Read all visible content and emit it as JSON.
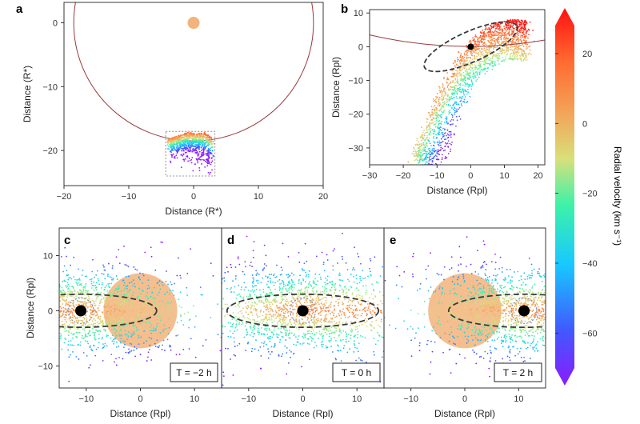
{
  "chart_data": [
    {
      "panel": "a",
      "type": "scatter",
      "xlabel": "Distance (R*)",
      "ylabel": "Distance (R*)",
      "xlim": [
        -20,
        20
      ],
      "ylim": [
        -25.5,
        3.2
      ],
      "xticks": [
        -20,
        -10,
        0,
        10,
        20
      ],
      "yticks": [
        -20,
        -10,
        0
      ],
      "star_circle": {
        "cx": 0,
        "cy": 0,
        "r": 18.5
      },
      "orange_marker": {
        "x": 0,
        "y": 0
      },
      "inset_box": {
        "x0": -4.3,
        "x1": 3.3,
        "y0": -24,
        "y1": -17
      }
    },
    {
      "panel": "b",
      "type": "scatter",
      "xlabel": "Distance (Rpl)",
      "ylabel": "Distance (Rpl)",
      "xlim": [
        -30,
        22
      ],
      "ylim": [
        -35,
        11
      ],
      "xticks": [
        -30,
        -20,
        -10,
        0,
        10,
        20
      ],
      "yticks": [
        -30,
        -20,
        -10,
        0,
        10
      ],
      "planet": {
        "x": 0,
        "y": 0
      },
      "roche_ellipse": {
        "cx": 0,
        "cy": 0,
        "rx": 15,
        "ry": 4.5,
        "angle_deg": 24
      }
    },
    {
      "panel": "c",
      "type": "scatter",
      "xlabel": "Distance (Rpl)",
      "ylabel": "Distance (Rpl)",
      "xlim": [
        -15,
        15
      ],
      "ylim": [
        -14,
        15
      ],
      "xticks": [
        -10,
        0,
        10
      ],
      "yticks": [
        -10,
        0,
        10
      ],
      "time": "T = −2 h",
      "planet_x": -11,
      "star_x": 0
    },
    {
      "panel": "d",
      "type": "scatter",
      "xlabel": "Distance (Rpl)",
      "xlim": [
        -15,
        15
      ],
      "ylim": [
        -14,
        15
      ],
      "xticks": [
        -10,
        0,
        10
      ],
      "time": "T = 0 h",
      "planet_x": 0,
      "star_x": null
    },
    {
      "panel": "e",
      "type": "scatter",
      "xlabel": "Distance (Rpl)",
      "xlim": [
        -15,
        15
      ],
      "ylim": [
        -14,
        15
      ],
      "xticks": [
        -10,
        0,
        10
      ],
      "time": "T = 2 h",
      "planet_x": 11,
      "star_x": 0
    }
  ],
  "colorbar": {
    "label": "Radial velocity  (km s⁻¹)",
    "min": -70,
    "max": 28,
    "ticks": [
      20,
      0,
      -20,
      -40,
      -60
    ]
  },
  "colors": {
    "star": "#f3b37b",
    "circle": "#9b3a3a",
    "ellipse": "#3a3a3a",
    "planet": "#000000"
  },
  "labels": {
    "a": "a",
    "b": "b",
    "c": "c",
    "d": "d",
    "e": "e"
  }
}
